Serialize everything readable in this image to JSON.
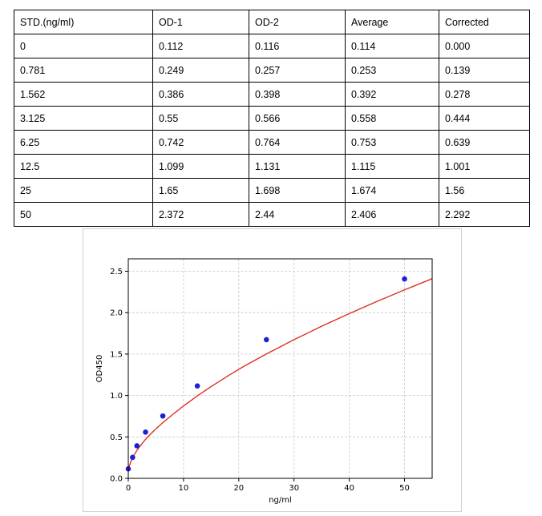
{
  "table": {
    "headers": [
      "STD.(ng/ml)",
      "OD-1",
      "OD-2",
      "Average",
      "Corrected"
    ],
    "rows": [
      [
        "0",
        "0.112",
        "0.116",
        "0.114",
        "0.000"
      ],
      [
        "0.781",
        "0.249",
        "0.257",
        "0.253",
        "0.139"
      ],
      [
        "1.562",
        "0.386",
        "0.398",
        "0.392",
        "0.278"
      ],
      [
        "3.125",
        "0.55",
        "0.566",
        "0.558",
        "0.444"
      ],
      [
        "6.25",
        "0.742",
        "0.764",
        "0.753",
        "0.639"
      ],
      [
        "12.5",
        "1.099",
        "1.131",
        "1.115",
        "1.001"
      ],
      [
        "25",
        "1.65",
        "1.698",
        "1.674",
        "1.56"
      ],
      [
        "50",
        "2.372",
        "2.44",
        "2.406",
        "2.292"
      ]
    ]
  },
  "chart_data": {
    "type": "scatter",
    "title": "",
    "xlabel": "ng/ml",
    "ylabel": "OD450",
    "xlim": [
      0,
      55
    ],
    "ylim": [
      0,
      2.65
    ],
    "xticks": [
      "0",
      "10",
      "20",
      "30",
      "40",
      "50"
    ],
    "yticks": [
      "0.0",
      "0.5",
      "1.0",
      "1.5",
      "2.0",
      "2.5"
    ],
    "grid": true,
    "points": {
      "x": [
        0,
        0.781,
        1.562,
        3.125,
        6.25,
        12.5,
        25,
        50
      ],
      "y": [
        0.114,
        0.253,
        0.392,
        0.558,
        0.753,
        1.115,
        1.674,
        2.406
      ],
      "color": "#1f1fd6"
    },
    "fit_curve": {
      "color": "#e0301e",
      "x": [
        0,
        0.5,
        1,
        1.5,
        2,
        3,
        4,
        5,
        6.25,
        8,
        10,
        12.5,
        15,
        18,
        21,
        25,
        30,
        35,
        40,
        45,
        50,
        55
      ],
      "y": [
        0.114,
        0.208,
        0.275,
        0.33,
        0.378,
        0.461,
        0.533,
        0.597,
        0.672,
        0.769,
        0.874,
        0.996,
        1.108,
        1.235,
        1.355,
        1.502,
        1.674,
        1.836,
        1.989,
        2.135,
        2.275,
        2.41
      ]
    }
  }
}
